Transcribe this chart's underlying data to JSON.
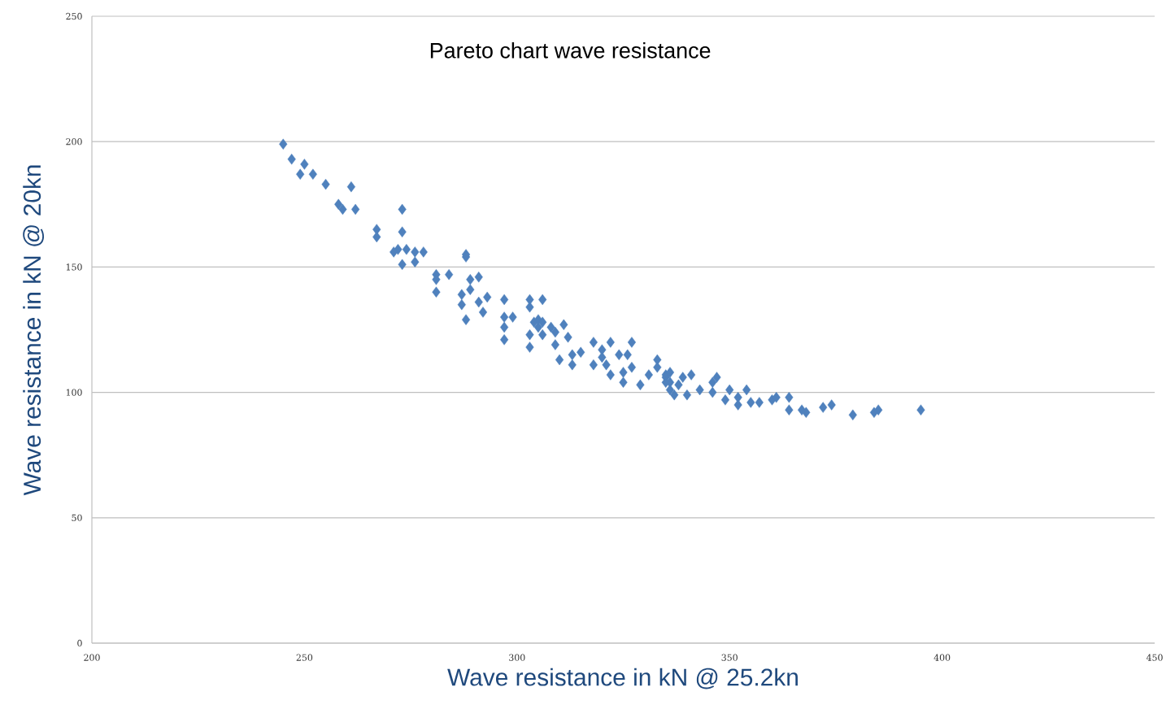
{
  "chart_data": {
    "type": "scatter",
    "title": "Pareto chart wave resistance",
    "xlabel": "Wave resistance in kN @ 25.2kn",
    "ylabel": "Wave resistance in kN @ 20kn",
    "x": [
      245,
      247,
      250,
      249,
      252,
      255,
      261,
      258,
      259,
      262,
      267,
      267,
      273,
      273,
      272,
      271,
      273,
      274,
      276,
      278,
      276,
      281,
      281,
      284,
      281,
      288,
      288,
      287,
      287,
      289,
      289,
      291,
      288,
      291,
      292,
      293,
      297,
      297,
      297,
      299,
      297,
      303,
      303,
      306,
      303,
      303,
      305,
      304,
      305,
      306,
      306,
      308,
      309,
      309,
      310,
      311,
      312,
      313,
      313,
      315,
      318,
      318,
      320,
      320,
      322,
      321,
      322,
      324,
      325,
      325,
      327,
      326,
      327,
      329,
      331,
      333,
      333,
      335,
      335,
      336,
      336,
      335,
      336,
      337,
      338,
      339,
      340,
      341,
      343,
      346,
      346,
      347,
      349,
      350,
      352,
      352,
      354,
      355,
      357,
      360,
      361,
      364,
      364,
      367,
      368,
      372,
      374,
      379,
      384,
      385,
      395
    ],
    "values": [
      199,
      193,
      191,
      187,
      187,
      183,
      182,
      175,
      173,
      173,
      165,
      162,
      173,
      164,
      157,
      156,
      151,
      157,
      156,
      156,
      152,
      147,
      145,
      147,
      140,
      154,
      155,
      139,
      135,
      145,
      141,
      146,
      129,
      136,
      132,
      138,
      137,
      130,
      126,
      130,
      121,
      134,
      137,
      137,
      123,
      118,
      126,
      128,
      129,
      128,
      123,
      126,
      119,
      124,
      113,
      127,
      122,
      115,
      111,
      116,
      120,
      111,
      117,
      114,
      120,
      111,
      107,
      115,
      108,
      104,
      120,
      115,
      110,
      103,
      107,
      113,
      110,
      107,
      106,
      104,
      108,
      104,
      101,
      99,
      103,
      106,
      99,
      107,
      101,
      100,
      104,
      106,
      97,
      101,
      98,
      95,
      101,
      96,
      96,
      97,
      98,
      98,
      93,
      93,
      92,
      94,
      95,
      91,
      92,
      93,
      93
    ],
    "color": "#4f81bd",
    "marker": "diamond",
    "xlim": [
      200,
      450
    ],
    "ylim": [
      0,
      250
    ],
    "xticks": [
      200,
      250,
      300,
      350,
      400,
      450
    ],
    "yticks": [
      0,
      50,
      100,
      150,
      200,
      250
    ],
    "grid": "y"
  }
}
